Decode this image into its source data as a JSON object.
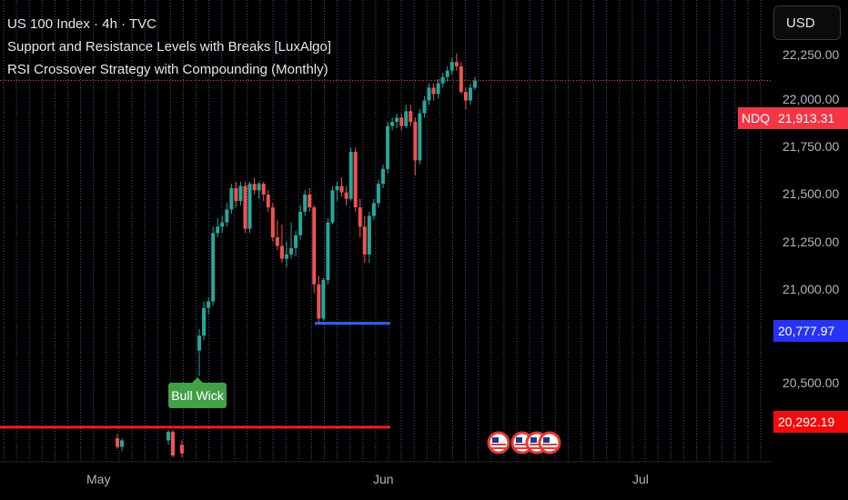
{
  "legend": {
    "title": "US 100 Index · 4h · TVC",
    "indicator_1": "Support and Resistance Levels with Breaks [LuxAlgo]",
    "indicator_2": "RSI Crossover Strategy with Compounding (Monthly)"
  },
  "currency_button": "USD",
  "symbol_badge": "NDQ",
  "annotation": "Bull Wick",
  "colors": {
    "background": "#000000",
    "up": "#26a69a",
    "down": "#ef5350",
    "support_line": "#2962ff",
    "resistance_line": "#ff1a1a",
    "grid": "#4a6aa8"
  },
  "chart_data": {
    "type": "candlestick",
    "y_ticks": [
      "22,250.00",
      "22,000.00",
      "21,750.00",
      "21,500.00",
      "21,250.00",
      "21,000.00",
      "20,500.00"
    ],
    "x_ticks": [
      "May",
      "Jun",
      "Jul"
    ],
    "ylim": [
      20130,
      22290
    ],
    "price_tags": [
      {
        "value": "21,913.31",
        "kind": "last"
      },
      {
        "value": "20,777.97",
        "kind": "support"
      },
      {
        "value": "20,292.19",
        "kind": "resistance"
      }
    ],
    "levels": [
      {
        "name": "support",
        "price": 20778
      },
      {
        "name": "resistance",
        "price": 20292
      },
      {
        "name": "last",
        "price": 21913
      }
    ],
    "candles": [
      [
        20240,
        20260,
        20190,
        20200
      ],
      [
        20200,
        20240,
        20180,
        20230
      ],
      [
        20230,
        20280,
        20210,
        20270
      ],
      [
        20270,
        20280,
        20150,
        20160
      ],
      [
        20210,
        20230,
        20150,
        20170
      ],
      [
        20650,
        20750,
        20530,
        20720
      ],
      [
        20720,
        20880,
        20700,
        20850
      ],
      [
        20850,
        20900,
        20820,
        20880
      ],
      [
        20880,
        21230,
        20860,
        21200
      ],
      [
        21200,
        21270,
        21180,
        21230
      ],
      [
        21230,
        21280,
        21200,
        21250
      ],
      [
        21250,
        21340,
        21230,
        21310
      ],
      [
        21310,
        21430,
        21290,
        21410
      ],
      [
        21410,
        21440,
        21320,
        21350
      ],
      [
        21350,
        21440,
        21330,
        21420
      ],
      [
        21420,
        21440,
        21200,
        21220
      ],
      [
        21220,
        21440,
        21200,
        21430
      ],
      [
        21430,
        21460,
        21380,
        21400
      ],
      [
        21400,
        21440,
        21360,
        21430
      ],
      [
        21430,
        21440,
        21350,
        21380
      ],
      [
        21380,
        21400,
        21300,
        21320
      ],
      [
        21320,
        21340,
        21160,
        21180
      ],
      [
        21180,
        21260,
        21120,
        21140
      ],
      [
        21140,
        21240,
        21060,
        21080
      ],
      [
        21080,
        21160,
        21040,
        21100
      ],
      [
        21100,
        21250,
        21080,
        21130
      ],
      [
        21130,
        21210,
        21090,
        21190
      ],
      [
        21190,
        21330,
        21170,
        21300
      ],
      [
        21300,
        21400,
        21280,
        21380
      ],
      [
        21380,
        21410,
        21300,
        21320
      ],
      [
        21320,
        21330,
        20920,
        20960
      ],
      [
        20960,
        21000,
        20780,
        20800
      ],
      [
        20800,
        20990,
        20790,
        20980
      ],
      [
        20980,
        21270,
        20960,
        21250
      ],
      [
        21250,
        21420,
        21240,
        21400
      ],
      [
        21400,
        21440,
        21350,
        21420
      ],
      [
        21420,
        21460,
        21370,
        21390
      ],
      [
        21390,
        21420,
        21330,
        21360
      ],
      [
        21360,
        21600,
        21350,
        21580
      ],
      [
        21580,
        21600,
        21300,
        21320
      ],
      [
        21320,
        21360,
        21180,
        21230
      ],
      [
        21230,
        21280,
        21060,
        21100
      ],
      [
        21100,
        21300,
        21060,
        21280
      ],
      [
        21280,
        21360,
        21260,
        21340
      ],
      [
        21340,
        21450,
        21320,
        21430
      ],
      [
        21430,
        21520,
        21410,
        21500
      ],
      [
        21500,
        21720,
        21480,
        21700
      ],
      [
        21700,
        21740,
        21680,
        21720
      ],
      [
        21720,
        21760,
        21690,
        21740
      ],
      [
        21740,
        21760,
        21680,
        21700
      ],
      [
        21700,
        21800,
        21690,
        21770
      ],
      [
        21770,
        21800,
        21700,
        21720
      ],
      [
        21720,
        21740,
        21470,
        21540
      ],
      [
        21540,
        21780,
        21520,
        21760
      ],
      [
        21760,
        21840,
        21740,
        21820
      ],
      [
        21820,
        21900,
        21800,
        21880
      ],
      [
        21880,
        21900,
        21820,
        21850
      ],
      [
        21850,
        21920,
        21830,
        21900
      ],
      [
        21900,
        21950,
        21880,
        21930
      ],
      [
        21930,
        21980,
        21910,
        21960
      ],
      [
        21960,
        22020,
        21940,
        22000
      ],
      [
        22000,
        22040,
        21960,
        21980
      ],
      [
        21980,
        22000,
        21850,
        21860
      ],
      [
        21860,
        21880,
        21780,
        21820
      ],
      [
        21820,
        21900,
        21800,
        21880
      ],
      [
        21880,
        21930,
        21870,
        21913
      ]
    ]
  }
}
